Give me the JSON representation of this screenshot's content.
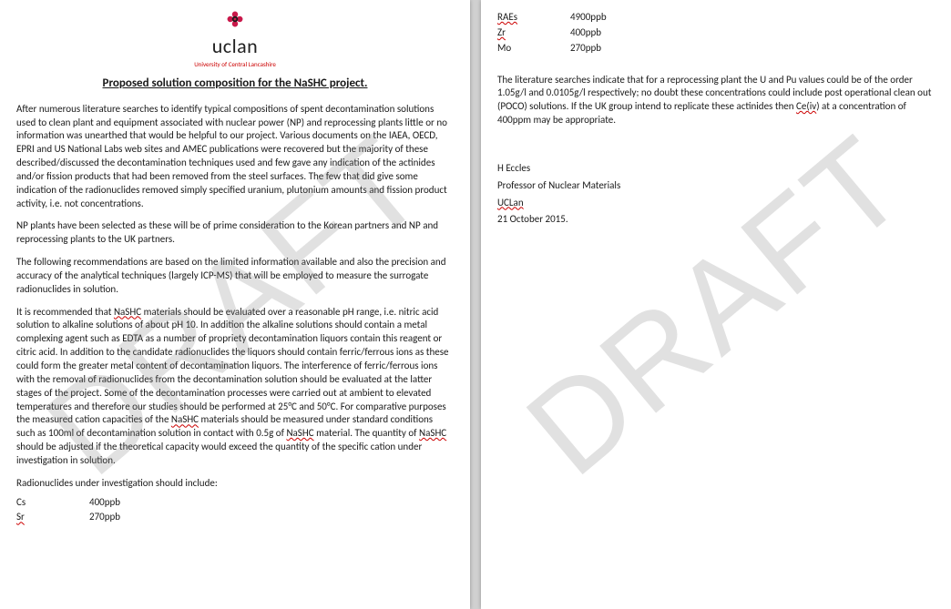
{
  "watermark": "DRAFT",
  "logo": {
    "text": "uclan",
    "sub": "University of Central Lancashire"
  },
  "title": "Proposed solution composition for the NaSHC project.",
  "p1": "After numerous literature searches to identify typical compositions of spent decontamination solutions used to clean plant and equipment associated with nuclear power (NP) and reprocessing plants little or no information was unearthed that would be helpful to our project. Various documents on the IAEA, OECD, EPRI and US National Labs web sites and AMEC publications were recovered but the majority of these described/discussed the decontamination techniques used and few gave any indication of the actinides and/or fission products that had been removed from the steel surfaces. The few that did give some indication of the radionuclides removed simply specified uranium, plutonium amounts and fission product activity, i.e. not concentrations.",
  "p2": "NP plants have been selected as these will be of prime consideration to the Korean partners and NP and reprocessing plants to the UK partners.",
  "p3": "The following recommendations are based on the limited information available and also the precision and accuracy of the analytical techniques (largely ICP-MS) that will be employed to measure the surrogate radionuclides in solution.",
  "p4_a": "It is recommended that ",
  "p4_b": " materials should be evaluated over a reasonable pH range, i.e. nitric acid solution to alkaline solutions of about pH 10. In addition the alkaline solutions should contain a metal complexing agent such as EDTA as a number of propriety decontamination liquors contain this reagent or citric acid. In addition to the candidate radionuclides the liquors should contain ferric/ferrous ions as these could form the greater metal content of decontamination liquors. The interference of ferric/ferrous ions with the removal of radionuclides from the decontamination solution should be evaluated at the latter stages of the project. Some of the decontamination processes were carried out at ambient to elevated temperatures and therefore our studies should be performed at 25°C and 50°C. For comparative purposes the measured cation capacities of the ",
  "p4_c": " materials should be measured under standard conditions such as 100ml of decontamination solution in contact with 0.5g of ",
  "p4_d": " material. The quantity of ",
  "p4_e": " should be adjusted if the theoretical capacity would exceed the quantity of the specific cation under investigation in solution.",
  "nashc": "NaSHC",
  "p5": "Radionuclides under investigation should include:",
  "table1": [
    {
      "el": "Cs",
      "val": "400ppb",
      "sq": false
    },
    {
      "el": "Sr",
      "val": "270ppb",
      "sq": true
    }
  ],
  "table2": [
    {
      "el": "RAEs",
      "val": "4900ppb",
      "sq": true
    },
    {
      "el": "Zr",
      "val": "400ppb",
      "sq": true
    },
    {
      "el": "Mo",
      "val": "270ppb",
      "sq": false
    }
  ],
  "p6_a": "The literature searches indicate that for a reprocessing plant the U and Pu values could be of the order 1.05g/l and 0.0105g/l respectively; no doubt these concentrations could include post operational clean out (POCO) solutions. If the UK group intend to replicate these actinides then ",
  "p6_ce": "Ce(iv",
  "p6_b": ") at a concentration of 400ppm may be appropriate.",
  "sig": {
    "name": "H Eccles",
    "title": "Professor of Nuclear Materials",
    "org": "UCLan",
    "date": "21 October 2015."
  }
}
